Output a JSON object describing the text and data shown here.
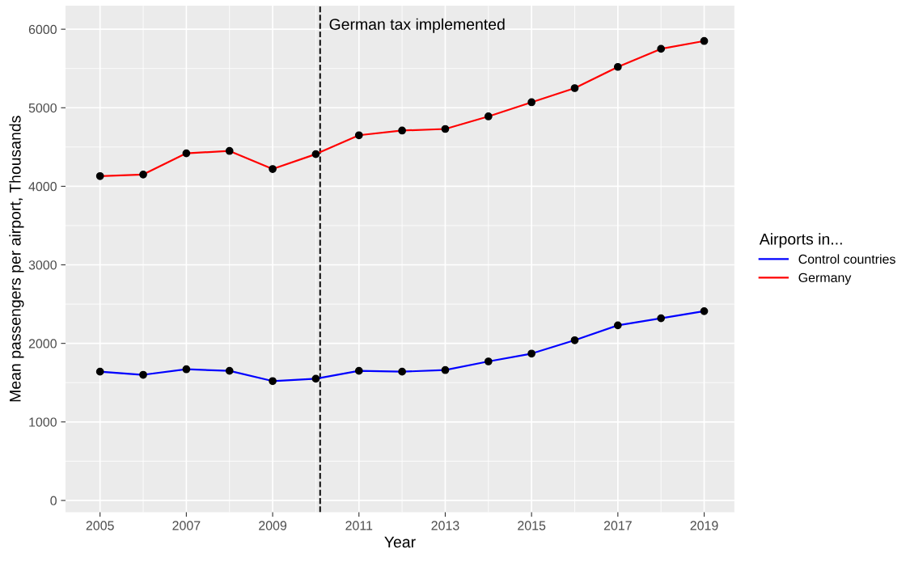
{
  "chart_data": {
    "type": "line",
    "xlabel": "Year",
    "ylabel": "Mean passengers per airport, Thousands",
    "legend_title": "Airports in...",
    "x": [
      2005,
      2006,
      2007,
      2008,
      2009,
      2010,
      2011,
      2012,
      2013,
      2014,
      2015,
      2016,
      2017,
      2018,
      2019
    ],
    "series": [
      {
        "name": "Control countries",
        "color": "#0000ff",
        "values": [
          1640,
          1600,
          1670,
          1650,
          1520,
          1550,
          1650,
          1640,
          1660,
          1770,
          1870,
          2040,
          2230,
          2320,
          2410
        ]
      },
      {
        "name": "Germany",
        "color": "#ff0000",
        "values": [
          4130,
          4150,
          4420,
          4450,
          4220,
          4410,
          4650,
          4710,
          4730,
          4890,
          5070,
          5250,
          5520,
          5750,
          5850
        ]
      }
    ],
    "xlim": [
      2004.2,
      2019.7
    ],
    "xticks": [
      2005,
      2007,
      2009,
      2011,
      2013,
      2015,
      2017,
      2019
    ],
    "ylim": [
      -150,
      6300
    ],
    "yticks": [
      0,
      1000,
      2000,
      3000,
      4000,
      5000,
      6000
    ],
    "ref_lines": [
      {
        "axis": "x",
        "value": 2010.1,
        "label": "German tax implemented",
        "color": "#000000",
        "line_style": "dashed"
      }
    ],
    "grid": true,
    "legend": "right",
    "marker": "circle",
    "line_style": "solid"
  }
}
